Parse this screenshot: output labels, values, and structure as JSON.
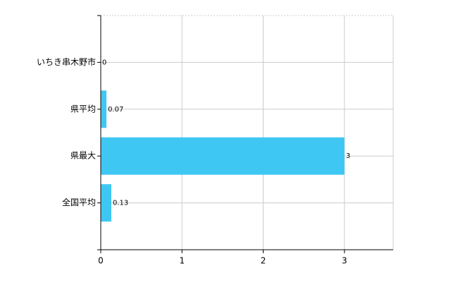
{
  "chart_data": {
    "type": "hbar",
    "categories": [
      "いちき串木野市",
      "県平均",
      "県最大",
      "全国平均"
    ],
    "values": [
      0,
      0.07,
      3,
      0.13
    ],
    "color": "#3fc7f4",
    "xlim": [
      0,
      3.6
    ],
    "xticks": [
      0,
      1,
      2,
      3
    ],
    "grid": true
  }
}
